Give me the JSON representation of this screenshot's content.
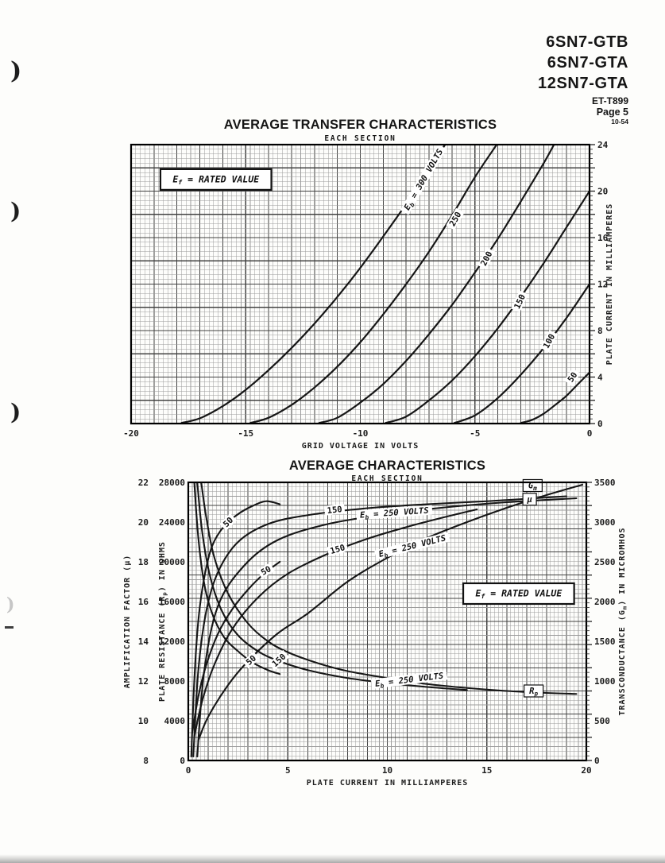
{
  "page": {
    "header": {
      "models": [
        "6SN7-GTB",
        "6SN7-GTA",
        "12SN7-GTA"
      ],
      "doc_number": "ET-T899",
      "page_label": "Page 5",
      "date_code": "10-54"
    },
    "margin_marks": [
      ")",
      ")",
      ")",
      ")"
    ]
  },
  "colors": {
    "ink": "#161616",
    "paper": "#fdfdfb",
    "grid_minor": "#9b9b9b",
    "grid_major": "#424242",
    "frame": "#000000"
  },
  "chart_data": [
    {
      "id": "transfer",
      "type": "line",
      "title": "AVERAGE TRANSFER CHARACTERISTICS",
      "subtitle": "EACH SECTION",
      "xlabel": "GRID VOLTAGE IN VOLTS",
      "ylabel_right": "PLATE CURRENT IN MILLIAMPERES",
      "xlim": [
        -20,
        0
      ],
      "ylim": [
        0,
        24
      ],
      "x_ticks": [
        -20,
        -15,
        -10,
        -5,
        0
      ],
      "y_ticks": [
        0,
        4,
        8,
        12,
        16,
        20,
        24
      ],
      "x_divisions": 100,
      "y_divisions": 60,
      "major_every": 5,
      "grid": true,
      "annotations": [
        {
          "text": "E_f = RATED VALUE",
          "x": -16.3,
          "y": 21.0,
          "rot": 0,
          "box": true,
          "big": true
        }
      ],
      "series": [
        {
          "name": "Eb = 300 V",
          "points": [
            [
              -17.8,
              0.05
            ],
            [
              -17,
              0.45
            ],
            [
              -16,
              1.5
            ],
            [
              -15,
              2.9
            ],
            [
              -14,
              4.6
            ],
            [
              -13,
              6.5
            ],
            [
              -12,
              8.6
            ],
            [
              -11,
              10.9
            ],
            [
              -10,
              13.4
            ],
            [
              -9,
              16.1
            ],
            [
              -8,
              18.9
            ],
            [
              -7,
              21.9
            ],
            [
              -6.3,
              24
            ]
          ],
          "label": {
            "text": "E_b = 300 VOLTS",
            "x": -7.25,
            "y": 21.0,
            "rot": -60
          }
        },
        {
          "name": "Eb = 250 V",
          "points": [
            [
              -14.8,
              0.05
            ],
            [
              -14,
              0.5
            ],
            [
              -13,
              1.6
            ],
            [
              -12,
              3.1
            ],
            [
              -11,
              4.9
            ],
            [
              -10,
              7.0
            ],
            [
              -9,
              9.4
            ],
            [
              -8,
              12.0
            ],
            [
              -7,
              14.8
            ],
            [
              -6,
              17.9
            ],
            [
              -5,
              21.2
            ],
            [
              -4.05,
              24
            ]
          ],
          "label": {
            "text": "250",
            "x": -5.86,
            "y": 17.6,
            "rot": -60
          }
        },
        {
          "name": "Eb = 200 V",
          "points": [
            [
              -11.8,
              0.05
            ],
            [
              -11,
              0.5
            ],
            [
              -10,
              1.8
            ],
            [
              -9,
              3.4
            ],
            [
              -8,
              5.4
            ],
            [
              -7,
              7.7
            ],
            [
              -6,
              10.2
            ],
            [
              -5,
              13.0
            ],
            [
              -4,
              15.9
            ],
            [
              -3,
              19.1
            ],
            [
              -2,
              22.4
            ],
            [
              -1.55,
              24
            ]
          ],
          "label": {
            "text": "200",
            "x": -4.5,
            "y": 14.2,
            "rot": -62
          }
        },
        {
          "name": "Eb = 150 V",
          "points": [
            [
              -8.9,
              0.05
            ],
            [
              -8,
              0.6
            ],
            [
              -7,
              2.0
            ],
            [
              -6,
              3.7
            ],
            [
              -5,
              5.8
            ],
            [
              -4,
              8.2
            ],
            [
              -3,
              10.9
            ],
            [
              -2,
              13.8
            ],
            [
              -1,
              16.9
            ],
            [
              0,
              20.0
            ]
          ],
          "label": {
            "text": "150",
            "x": -3.05,
            "y": 10.5,
            "rot": -65
          }
        },
        {
          "name": "Eb = 100 V",
          "points": [
            [
              -5.9,
              0.05
            ],
            [
              -5,
              0.7
            ],
            [
              -4,
              2.2
            ],
            [
              -3,
              4.2
            ],
            [
              -2,
              6.5
            ],
            [
              -1,
              9.1
            ],
            [
              0,
              12.0
            ]
          ],
          "label": {
            "text": "100",
            "x": -1.77,
            "y": 7.1,
            "rot": -62
          }
        },
        {
          "name": "Eb = 50 V",
          "points": [
            [
              -3.0,
              0.05
            ],
            [
              -2.5,
              0.32
            ],
            [
              -2,
              0.85
            ],
            [
              -1.5,
              1.6
            ],
            [
              -1,
              2.4
            ],
            [
              -0.5,
              3.4
            ],
            [
              0,
              4.4
            ]
          ],
          "label": {
            "text": "50",
            "x": -0.75,
            "y": 4.0,
            "rot": -55
          }
        }
      ]
    },
    {
      "id": "average",
      "type": "line",
      "title": "AVERAGE CHARACTERISTICS",
      "subtitle": "EACH SECTION",
      "xlabel": "PLATE CURRENT IN MILLIAMPERES",
      "ylabel_left_outer": "AMPLIFICATION FACTOR (μ)",
      "ylabel_left_inner": "PLATE RESISTANCE (R_p) IN OHMS",
      "ylabel_right": "TRANSCONDUCTANCE (G_m) IN MICROMHOS",
      "xlim": [
        0,
        20
      ],
      "x_ticks": [
        0,
        5,
        10,
        15,
        20
      ],
      "x_divisions": 100,
      "y_divisions": 60,
      "major_every": 5,
      "grid": true,
      "axes": {
        "mu": {
          "lim": [
            8,
            22
          ],
          "ticks": [
            8,
            10,
            12,
            14,
            16,
            18,
            20,
            22
          ]
        },
        "rp": {
          "lim": [
            0,
            28000
          ],
          "ticks": [
            0,
            4000,
            8000,
            12000,
            16000,
            20000,
            24000,
            28000
          ]
        },
        "gm": {
          "lim": [
            0,
            3500
          ],
          "ticks": [
            0,
            500,
            1000,
            1500,
            2000,
            2500,
            3000,
            3500
          ]
        }
      },
      "annotations": [
        {
          "text": "E_f = RATED VALUE",
          "x": 16.6,
          "scale": "mu",
          "y": 16.4,
          "rot": 0,
          "box": true,
          "big": true
        },
        {
          "text": "G_m",
          "x": 17.3,
          "scale": "gm",
          "y": 3460,
          "rot": 0,
          "box": true
        },
        {
          "text": "μ",
          "x": 17.15,
          "scale": "mu",
          "y": 21.15,
          "rot": 0,
          "box": true
        },
        {
          "text": "R_p",
          "x": 17.35,
          "scale": "rp",
          "y": 7000,
          "rot": 0,
          "box": true
        }
      ],
      "series": [
        {
          "name": "mu @ Eb=50V",
          "scale": "mu",
          "points": [
            [
              0.15,
              8.2
            ],
            [
              0.3,
              12
            ],
            [
              0.5,
              15
            ],
            [
              0.8,
              17.2
            ],
            [
              1.2,
              18.8
            ],
            [
              1.8,
              19.8
            ],
            [
              2.5,
              20.4
            ],
            [
              3.2,
              20.8
            ],
            [
              3.9,
              21.05
            ],
            [
              4.6,
              20.9
            ]
          ],
          "label": {
            "text": "50",
            "x": 2.0,
            "y": 20.0,
            "rot": -45
          }
        },
        {
          "name": "mu @ Eb=150V",
          "scale": "mu",
          "points": [
            [
              0.25,
              8.2
            ],
            [
              0.5,
              12.5
            ],
            [
              0.9,
              15.5
            ],
            [
              1.5,
              17.5
            ],
            [
              2.5,
              19.0
            ],
            [
              4,
              19.9
            ],
            [
              6,
              20.35
            ],
            [
              9,
              20.7
            ],
            [
              12,
              20.9
            ],
            [
              15,
              21.05
            ],
            [
              19,
              21.3
            ]
          ],
          "label": {
            "text": "150",
            "x": 7.35,
            "y": 20.62,
            "rot": -6
          }
        },
        {
          "name": "mu @ Eb=250V",
          "scale": "mu",
          "points": [
            [
              0.45,
              8.2
            ],
            [
              0.8,
              12.5
            ],
            [
              1.5,
              15.8
            ],
            [
              2.8,
              17.8
            ],
            [
              4.5,
              19.1
            ],
            [
              7,
              19.9
            ],
            [
              10,
              20.4
            ],
            [
              13,
              20.75
            ],
            [
              16,
              21.0
            ],
            [
              19.5,
              21.2
            ]
          ],
          "label": {
            "text": "E_b = 250 VOLTS",
            "x": 10.35,
            "y": 20.48,
            "rot": -4
          }
        },
        {
          "name": "gm @ Eb=50V",
          "scale": "gm",
          "points": [
            [
              0.2,
              350
            ],
            [
              0.5,
              800
            ],
            [
              0.9,
              1200
            ],
            [
              1.5,
              1600
            ],
            [
              2.2,
              1900
            ],
            [
              3,
              2150
            ],
            [
              3.8,
              2350
            ],
            [
              4.6,
              2500
            ]
          ],
          "label": {
            "text": "50",
            "x": 3.9,
            "y": 2390,
            "rot": -30
          }
        },
        {
          "name": "gm @ Eb=150V",
          "scale": "gm",
          "points": [
            [
              0.3,
              300
            ],
            [
              0.7,
              750
            ],
            [
              1.3,
              1200
            ],
            [
              2.2,
              1650
            ],
            [
              3.5,
              2050
            ],
            [
              5,
              2350
            ],
            [
              7,
              2600
            ],
            [
              9,
              2790
            ],
            [
              11,
              2940
            ],
            [
              13,
              3070
            ],
            [
              14.5,
              3160
            ]
          ],
          "label": {
            "text": "150",
            "x": 7.5,
            "y": 2660,
            "rot": -16
          }
        },
        {
          "name": "gm @ Eb=250V",
          "scale": "gm",
          "points": [
            [
              0.5,
              250
            ],
            [
              1,
              550
            ],
            [
              2,
              950
            ],
            [
              3,
              1250
            ],
            [
              4.5,
              1600
            ],
            [
              6,
              1850
            ],
            [
              8,
              2250
            ],
            [
              10,
              2550
            ],
            [
              12,
              2800
            ],
            [
              14,
              3000
            ],
            [
              16,
              3180
            ],
            [
              18,
              3340
            ],
            [
              19.8,
              3470
            ]
          ],
          "label": {
            "text": "E_b = 250 VOLTS",
            "x": 11.25,
            "y": 2700,
            "rot": -14
          }
        },
        {
          "name": "rp @ Eb=50V",
          "scale": "rp",
          "points": [
            [
              0.3,
              28000
            ],
            [
              0.5,
              22500
            ],
            [
              0.8,
              17800
            ],
            [
              1.2,
              14800
            ],
            [
              1.8,
              12400
            ],
            [
              2.5,
              11000
            ],
            [
              3.2,
              9900
            ],
            [
              4.0,
              9100
            ],
            [
              4.6,
              8700
            ]
          ],
          "label": {
            "text": "50",
            "x": 3.15,
            "y": 10100,
            "rot": -42
          }
        },
        {
          "name": "rp @ Eb=150V",
          "scale": "rp",
          "points": [
            [
              0.45,
              28000
            ],
            [
              0.7,
              23000
            ],
            [
              1.1,
              18500
            ],
            [
              1.7,
              15000
            ],
            [
              2.5,
              12600
            ],
            [
              3.5,
              11000
            ],
            [
              4.5,
              10050
            ],
            [
              6,
              9100
            ],
            [
              8,
              8300
            ],
            [
              10,
              7800
            ],
            [
              12,
              7400
            ],
            [
              14,
              7100
            ]
          ],
          "label": {
            "text": "150",
            "x": 4.55,
            "y": 10100,
            "rot": -42
          }
        },
        {
          "name": "rp @ Eb=250V",
          "scale": "rp",
          "points": [
            [
              0.65,
              28000
            ],
            [
              0.9,
              24500
            ],
            [
              1.3,
              20500
            ],
            [
              2,
              16800
            ],
            [
              3,
              13800
            ],
            [
              4,
              12000
            ],
            [
              5,
              10900
            ],
            [
              6.5,
              9800
            ],
            [
              8,
              9000
            ],
            [
              10,
              8300
            ],
            [
              12,
              7700
            ],
            [
              14,
              7300
            ],
            [
              16,
              7000
            ],
            [
              18,
              6800
            ],
            [
              19.5,
              6700
            ]
          ],
          "label": {
            "text": "E_b = 250 VOLTS",
            "x": 11.1,
            "y": 8150,
            "rot": -7
          }
        }
      ]
    }
  ]
}
